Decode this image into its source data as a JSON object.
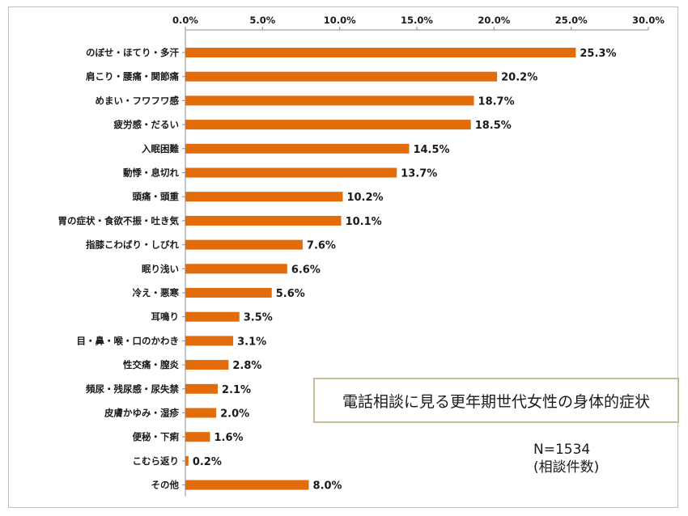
{
  "chart_data": {
    "type": "bar",
    "orientation": "horizontal",
    "title": "電話相談に見る更年期世代女性の身体的症状",
    "xlabel": "",
    "ylabel": "",
    "xlim": [
      0,
      30
    ],
    "ticks": [
      "0.0%",
      "5.0%",
      "10.0%",
      "15.0%",
      "20.0%",
      "25.0%",
      "30.0%"
    ],
    "tick_values": [
      0,
      5,
      10,
      15,
      20,
      25,
      30
    ],
    "categories": [
      "のぼせ・ほてり・多汗",
      "肩こり・腰痛・関節痛",
      "めまい・フワフワ感",
      "疲労感・だるい",
      "入眠困難",
      "動悸・息切れ",
      "頭痛・頭重",
      "胃の症状・食欲不振・吐き気",
      "指膝こわばり・しびれ",
      "眠り浅い",
      "冷え・悪寒",
      "耳鳴り",
      "目・鼻・喉・口のかわき",
      "性交痛・膣炎",
      "頻尿・残尿感・尿失禁",
      "皮膚かゆみ・湿疹",
      "便秘・下痢",
      "こむら返り",
      "その他"
    ],
    "values": [
      25.3,
      20.2,
      18.7,
      18.5,
      14.5,
      13.7,
      10.2,
      10.1,
      7.6,
      6.6,
      5.6,
      3.5,
      3.1,
      2.8,
      2.1,
      2.0,
      1.6,
      0.2,
      8.0
    ],
    "value_labels": [
      "25.3%",
      "20.2%",
      "18.7%",
      "18.5%",
      "14.5%",
      "13.7%",
      "10.2%",
      "10.1%",
      "7.6%",
      "6.6%",
      "5.6%",
      "3.5%",
      "3.1%",
      "2.8%",
      "2.1%",
      "2.0%",
      "1.6%",
      "0.2%",
      "8.0%"
    ],
    "bar_color": "#e36c0a",
    "grid": false,
    "axis_position": "top",
    "annotation": {
      "n_label": "N=1534",
      "unit_label": "(相談件数)"
    }
  }
}
